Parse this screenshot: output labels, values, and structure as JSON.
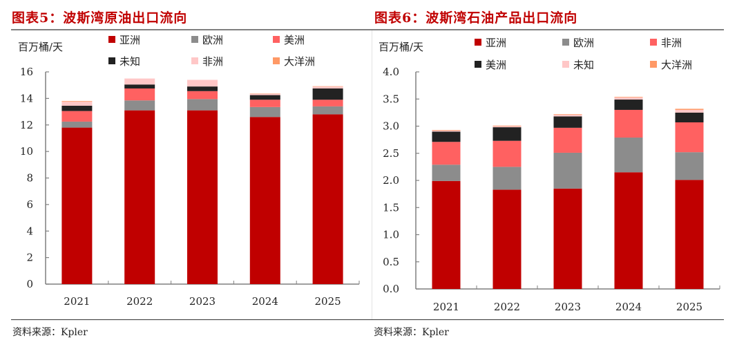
{
  "colors": {
    "title": "#c00000",
    "asia": "#c00000",
    "europe": "#8c8c8c",
    "coral": "#ff6161",
    "black": "#222222",
    "pink": "#ffc7c7",
    "oceania": "#ff9966"
  },
  "chart_data": [
    {
      "type": "bar",
      "stacked": true,
      "title": "图表5：波斯湾原油出口流向",
      "ylabel": "百万桶/天",
      "xlabel": "",
      "categories": [
        "2021",
        "2022",
        "2023",
        "2024",
        "2025"
      ],
      "ylim": [
        0,
        16
      ],
      "yticks": [
        0,
        2,
        4,
        6,
        8,
        10,
        12,
        14,
        16
      ],
      "ytick_labels": [
        "0",
        "2",
        "4",
        "6",
        "8",
        "10",
        "12",
        "14",
        "16"
      ],
      "grid": false,
      "legend_position": "top",
      "series": [
        {
          "name": "亚洲",
          "color": "#c00000",
          "values": [
            11.8,
            13.1,
            13.1,
            12.6,
            12.8
          ]
        },
        {
          "name": "欧洲",
          "color": "#8c8c8c",
          "values": [
            0.45,
            0.75,
            0.85,
            0.75,
            0.6
          ]
        },
        {
          "name": "美洲",
          "color": "#ff6161",
          "values": [
            0.8,
            0.9,
            0.6,
            0.55,
            0.5
          ]
        },
        {
          "name": "未知",
          "color": "#222222",
          "values": [
            0.4,
            0.3,
            0.35,
            0.35,
            0.85
          ]
        },
        {
          "name": "非洲",
          "color": "#ffc7c7",
          "values": [
            0.3,
            0.45,
            0.5,
            0.1,
            0.15
          ]
        },
        {
          "name": "大洋洲",
          "color": "#ff9966",
          "values": [
            0.05,
            0.0,
            0.0,
            0.02,
            0.02
          ]
        }
      ],
      "source": "资料来源：Kpler"
    },
    {
      "type": "bar",
      "stacked": true,
      "title": "图表6：波斯湾石油产品出口流向",
      "ylabel": "百万桶/天",
      "xlabel": "",
      "categories": [
        "2021",
        "2022",
        "2023",
        "2024",
        "2025"
      ],
      "ylim": [
        0,
        4.0
      ],
      "yticks": [
        0,
        0.5,
        1.0,
        1.5,
        2.0,
        2.5,
        3.0,
        3.5,
        4.0
      ],
      "ytick_labels": [
        "0.0",
        "0.5",
        "1.0",
        "1.5",
        "2.0",
        "2.5",
        "3.0",
        "3.5",
        "4.0"
      ],
      "grid": false,
      "legend_position": "top",
      "series": [
        {
          "name": "亚洲",
          "color": "#c00000",
          "values": [
            1.99,
            1.83,
            1.85,
            2.15,
            2.01
          ]
        },
        {
          "name": "欧洲",
          "color": "#8c8c8c",
          "values": [
            0.3,
            0.42,
            0.66,
            0.64,
            0.51
          ]
        },
        {
          "name": "非洲",
          "color": "#ff6161",
          "values": [
            0.42,
            0.48,
            0.46,
            0.51,
            0.55
          ]
        },
        {
          "name": "美洲",
          "color": "#222222",
          "values": [
            0.19,
            0.25,
            0.21,
            0.19,
            0.18
          ]
        },
        {
          "name": "未知",
          "color": "#ffc7c7",
          "values": [
            0.02,
            0.02,
            0.03,
            0.04,
            0.05
          ]
        },
        {
          "name": "大洋洲",
          "color": "#ff9966",
          "values": [
            0.01,
            0.01,
            0.01,
            0.01,
            0.02
          ]
        }
      ],
      "source": "资料来源：Kpler"
    }
  ]
}
